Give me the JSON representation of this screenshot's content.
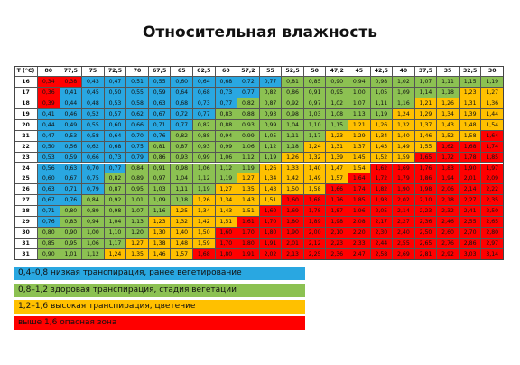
{
  "title": "Относительная влажность",
  "colors": {
    "blue": "#29a7e1",
    "green": "#8cc152",
    "yellow": "#ffc000",
    "red": "#ff0000",
    "header_bg": "#ffffff"
  },
  "table": {
    "corner": "T (°C)",
    "humidity": [
      "80",
      "77,5",
      "75",
      "72,5",
      "70",
      "67,5",
      "65",
      "62,5",
      "60",
      "57,2",
      "55",
      "52,5",
      "50",
      "47,2",
      "45",
      "42,5",
      "40",
      "37,5",
      "35",
      "32,5",
      "30"
    ],
    "rows": [
      {
        "t": "16",
        "values": [
          "0,34",
          "0,38",
          "0,43",
          "0,47",
          "0,51",
          "0,55",
          "0,60",
          "0,64",
          "0,68",
          "0,72",
          "0,77",
          "0,81",
          "0,85",
          "0,90",
          "0,94",
          "0,98",
          "1,02",
          "1,07",
          "1,11",
          "1,15",
          "1,19"
        ],
        "zones": [
          "r",
          "r",
          "b",
          "b",
          "b",
          "b",
          "b",
          "b",
          "b",
          "b",
          "b",
          "g",
          "g",
          "g",
          "g",
          "g",
          "g",
          "g",
          "g",
          "g",
          "g"
        ]
      },
      {
        "t": "17",
        "values": [
          "0,36",
          "0,41",
          "0,45",
          "0,50",
          "0,55",
          "0,59",
          "0,64",
          "0,68",
          "0,73",
          "0,77",
          "0,82",
          "0,86",
          "0,91",
          "0,95",
          "1,00",
          "1,05",
          "1,09",
          "1,14",
          "1,18",
          "1,23",
          "1,27"
        ],
        "zones": [
          "r",
          "b",
          "b",
          "b",
          "b",
          "b",
          "b",
          "b",
          "b",
          "b",
          "g",
          "g",
          "g",
          "g",
          "g",
          "g",
          "g",
          "g",
          "g",
          "y",
          "y"
        ]
      },
      {
        "t": "18",
        "values": [
          "0,39",
          "0,44",
          "0,48",
          "0,53",
          "0,58",
          "0,63",
          "0,68",
          "0,73",
          "0,77",
          "0,82",
          "0,87",
          "0,92",
          "0,97",
          "1,02",
          "1,07",
          "1,11",
          "1,16",
          "1,21",
          "1,26",
          "1,31",
          "1,36"
        ],
        "zones": [
          "r",
          "b",
          "b",
          "b",
          "b",
          "b",
          "b",
          "b",
          "b",
          "g",
          "g",
          "g",
          "g",
          "g",
          "g",
          "g",
          "g",
          "y",
          "y",
          "y",
          "y"
        ]
      },
      {
        "t": "19",
        "values": [
          "0,41",
          "0,46",
          "0,52",
          "0,57",
          "0,62",
          "0,67",
          "0,72",
          "0,77",
          "0,83",
          "0,88",
          "0,93",
          "0,98",
          "1,03",
          "1,08",
          "1,13",
          "1,19",
          "1,24",
          "1,29",
          "1,34",
          "1,39",
          "1,44"
        ],
        "zones": [
          "b",
          "b",
          "b",
          "b",
          "b",
          "b",
          "b",
          "b",
          "g",
          "g",
          "g",
          "g",
          "g",
          "g",
          "g",
          "g",
          "y",
          "y",
          "y",
          "y",
          "y"
        ]
      },
      {
        "t": "20",
        "values": [
          "0,44",
          "0,49",
          "0,55",
          "0,60",
          "0,66",
          "0,71",
          "0,77",
          "0,82",
          "0,88",
          "0,93",
          "0,99",
          "1,04",
          "1,10",
          "1,15",
          "1,21",
          "1,26",
          "1,32",
          "1,37",
          "1,43",
          "1,48",
          "1,54"
        ],
        "zones": [
          "b",
          "b",
          "b",
          "b",
          "b",
          "b",
          "b",
          "g",
          "g",
          "g",
          "g",
          "g",
          "g",
          "g",
          "y",
          "y",
          "y",
          "y",
          "y",
          "y",
          "y"
        ]
      },
      {
        "t": "21",
        "values": [
          "0,47",
          "0,53",
          "0,58",
          "0,64",
          "0,70",
          "0,76",
          "0,82",
          "0,88",
          "0,94",
          "0,99",
          "1,05",
          "1,11",
          "1,17",
          "1,23",
          "1,29",
          "1,34",
          "1,40",
          "1,46",
          "1,52",
          "1,58",
          "1,64"
        ],
        "zones": [
          "b",
          "b",
          "b",
          "b",
          "b",
          "b",
          "g",
          "g",
          "g",
          "g",
          "g",
          "g",
          "g",
          "y",
          "y",
          "y",
          "y",
          "y",
          "y",
          "y",
          "r"
        ]
      },
      {
        "t": "22",
        "values": [
          "0,50",
          "0,56",
          "0,62",
          "0,68",
          "0,75",
          "0,81",
          "0,87",
          "0,93",
          "0,99",
          "1,06",
          "1,12",
          "1,18",
          "1,24",
          "1,31",
          "1,37",
          "1,43",
          "1,49",
          "1,55",
          "1,62",
          "1,68",
          "1,74"
        ],
        "zones": [
          "b",
          "b",
          "b",
          "b",
          "b",
          "g",
          "g",
          "g",
          "g",
          "g",
          "g",
          "g",
          "y",
          "y",
          "y",
          "y",
          "y",
          "y",
          "r",
          "r",
          "r"
        ]
      },
      {
        "t": "23",
        "values": [
          "0,53",
          "0,59",
          "0,66",
          "0,73",
          "0,79",
          "0,86",
          "0,93",
          "0,99",
          "1,06",
          "1,12",
          "1,19",
          "1,26",
          "1,32",
          "1,39",
          "1,45",
          "1,52",
          "1,59",
          "1,65",
          "1,72",
          "1,78",
          "1,85"
        ],
        "zones": [
          "b",
          "b",
          "b",
          "b",
          "b",
          "g",
          "g",
          "g",
          "g",
          "g",
          "g",
          "y",
          "y",
          "y",
          "y",
          "y",
          "y",
          "r",
          "r",
          "r",
          "r"
        ]
      },
      {
        "t": "24",
        "values": [
          "0,56",
          "0,63",
          "0,70",
          "0,77",
          "0,84",
          "0,91",
          "0,98",
          "1,06",
          "1,12",
          "1,19",
          "1,26",
          "1,33",
          "1,40",
          "1,47",
          "1,54",
          "1,62",
          "1,69",
          "1,76",
          "1,83",
          "1,90",
          "1,97"
        ],
        "zones": [
          "b",
          "b",
          "b",
          "b",
          "g",
          "g",
          "g",
          "g",
          "g",
          "g",
          "y",
          "y",
          "y",
          "y",
          "y",
          "r",
          "r",
          "r",
          "r",
          "r",
          "r"
        ]
      },
      {
        "t": "25",
        "values": [
          "0,60",
          "0,67",
          "0,75",
          "0,82",
          "0,89",
          "0,97",
          "1,04",
          "1,12",
          "1,19",
          "1,27",
          "1,34",
          "1,42",
          "1,49",
          "1,57",
          "1,64",
          "1,72",
          "1,79",
          "1,86",
          "1,94",
          "2,01",
          "2,09"
        ],
        "zones": [
          "b",
          "b",
          "b",
          "g",
          "g",
          "g",
          "g",
          "g",
          "g",
          "y",
          "y",
          "y",
          "y",
          "y",
          "r",
          "r",
          "r",
          "r",
          "r",
          "r",
          "r"
        ]
      },
      {
        "t": "26",
        "values": [
          "0,63",
          "0,71",
          "0,79",
          "0,87",
          "0,95",
          "1,03",
          "1,11",
          "1,19",
          "1,27",
          "1,35",
          "1,43",
          "1,50",
          "1,58",
          "1,66",
          "1,74",
          "1,82",
          "1,90",
          "1,98",
          "2,06",
          "2,14",
          "2,22"
        ],
        "zones": [
          "b",
          "b",
          "b",
          "g",
          "g",
          "g",
          "g",
          "g",
          "y",
          "y",
          "y",
          "y",
          "y",
          "r",
          "r",
          "r",
          "r",
          "r",
          "r",
          "r",
          "r"
        ]
      },
      {
        "t": "27",
        "values": [
          "0,67",
          "0,76",
          "0,84",
          "0,92",
          "1,01",
          "1,09",
          "1,18",
          "1,26",
          "1,34",
          "1,43",
          "1,51",
          "1,60",
          "1,68",
          "1,76",
          "1,85",
          "1,93",
          "2,02",
          "2,10",
          "2,18",
          "2,27",
          "2,35"
        ],
        "zones": [
          "b",
          "b",
          "g",
          "g",
          "g",
          "g",
          "g",
          "y",
          "y",
          "y",
          "y",
          "r",
          "r",
          "r",
          "r",
          "r",
          "r",
          "r",
          "r",
          "r",
          "r"
        ]
      },
      {
        "t": "28",
        "values": [
          "0,71",
          "0,80",
          "0,89",
          "0,98",
          "1,07",
          "1,16",
          "1,25",
          "1,34",
          "1,43",
          "1,51",
          "1,60",
          "1,69",
          "1,78",
          "1,87",
          "1,96",
          "2,05",
          "2,14",
          "2,23",
          "2,32",
          "2,41",
          "2,50"
        ],
        "zones": [
          "b",
          "g",
          "g",
          "g",
          "g",
          "g",
          "y",
          "y",
          "y",
          "y",
          "r",
          "r",
          "r",
          "r",
          "r",
          "r",
          "r",
          "r",
          "r",
          "r",
          "r"
        ]
      },
      {
        "t": "29",
        "values": [
          "0,76",
          "0,83",
          "0,94",
          "1,04",
          "1,13",
          "1,23",
          "1,32",
          "1,42",
          "1,51",
          "1,61",
          "1,70",
          "1,80",
          "1,89",
          "1,98",
          "2,08",
          "2,17",
          "2,27",
          "2,36",
          "2,46",
          "2,55",
          "2,65"
        ],
        "zones": [
          "b",
          "g",
          "g",
          "g",
          "g",
          "y",
          "y",
          "y",
          "y",
          "r",
          "r",
          "r",
          "r",
          "r",
          "r",
          "r",
          "r",
          "r",
          "r",
          "r",
          "r"
        ]
      },
      {
        "t": "30",
        "values": [
          "0,80",
          "0,90",
          "1,00",
          "1,10",
          "1,20",
          "1,30",
          "1,40",
          "1,50",
          "1,60",
          "1,70",
          "1,80",
          "1,90",
          "2,00",
          "2,10",
          "2,20",
          "2,30",
          "2,40",
          "2,50",
          "2,60",
          "2,70",
          "2,80"
        ],
        "zones": [
          "g",
          "g",
          "g",
          "g",
          "g",
          "y",
          "y",
          "y",
          "r",
          "r",
          "r",
          "r",
          "r",
          "r",
          "r",
          "r",
          "r",
          "r",
          "r",
          "r",
          "r"
        ]
      },
      {
        "t": "31",
        "values": [
          "0,85",
          "0,95",
          "1,06",
          "1,17",
          "1,27",
          "1,38",
          "1,48",
          "1,59",
          "1,70",
          "1,80",
          "1,91",
          "2,01",
          "2,12",
          "2,23",
          "2,33",
          "2,44",
          "2,55",
          "2,65",
          "2,76",
          "2,86",
          "2,97"
        ],
        "zones": [
          "g",
          "g",
          "g",
          "g",
          "y",
          "y",
          "y",
          "y",
          "r",
          "r",
          "r",
          "r",
          "r",
          "r",
          "r",
          "r",
          "r",
          "r",
          "r",
          "r",
          "r"
        ]
      },
      {
        "t": "31",
        "values": [
          "0,90",
          "1,01",
          "1,12",
          "1,24",
          "1,35",
          "1,46",
          "1,57",
          "1,68",
          "1,80",
          "1,91",
          "2,02",
          "2,13",
          "2,25",
          "2,36",
          "2,47",
          "2,58",
          "2,69",
          "2,81",
          "2,92",
          "3,03",
          "3,14"
        ],
        "zones": [
          "g",
          "g",
          "g",
          "y",
          "y",
          "y",
          "y",
          "r",
          "r",
          "r",
          "r",
          "r",
          "r",
          "r",
          "r",
          "r",
          "r",
          "r",
          "r",
          "r",
          "r"
        ]
      }
    ]
  },
  "legend": [
    {
      "zone": "b",
      "label": "0,4–0,8 низкая транспирация, ранее вегетирование"
    },
    {
      "zone": "g",
      "label": "0,8–1,2 здоровая транспирация, стадия вегетации"
    },
    {
      "zone": "y",
      "label": "1,2–1,6 высокая транспирация, цветение"
    },
    {
      "zone": "r",
      "label": "выше 1,6 опасная зона"
    }
  ]
}
